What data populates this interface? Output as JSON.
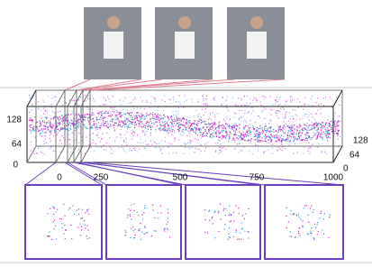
{
  "volume": {
    "left_ticks": [
      128,
      64,
      0
    ],
    "bottom_ticks": [
      0,
      250,
      500,
      750,
      1000
    ],
    "right_ticks": [
      128,
      64,
      0
    ]
  }
}
